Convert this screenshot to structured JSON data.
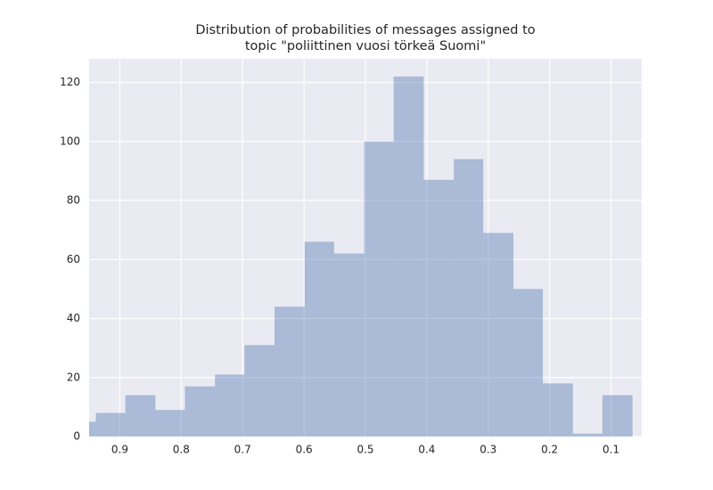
{
  "chart_data": {
    "type": "histogram",
    "title": [
      "Distribution of probabilities of messages assigned to",
      "topic \"poliittinen vuosi törkeä Suomi\""
    ],
    "bins": [
      0.065,
      0.114,
      0.162,
      0.211,
      0.259,
      0.308,
      0.356,
      0.405,
      0.454,
      0.502,
      0.551,
      0.599,
      0.648,
      0.697,
      0.745,
      0.794,
      0.842,
      0.891,
      0.939,
      0.988
    ],
    "counts": [
      14,
      1,
      18,
      50,
      69,
      94,
      87,
      122,
      100,
      62,
      66,
      44,
      31,
      21,
      17,
      9,
      14,
      8,
      5
    ],
    "color": "#4c72b0",
    "alpha": 0.4,
    "xlim": [
      0.95,
      0.05
    ],
    "xticks": [
      0.9,
      0.8,
      0.7,
      0.6,
      0.5,
      0.4,
      0.3,
      0.2,
      0.1
    ],
    "ylim": [
      0,
      128
    ],
    "yticks": [
      0,
      20,
      40,
      60,
      80,
      100,
      120
    ],
    "grid": true
  }
}
